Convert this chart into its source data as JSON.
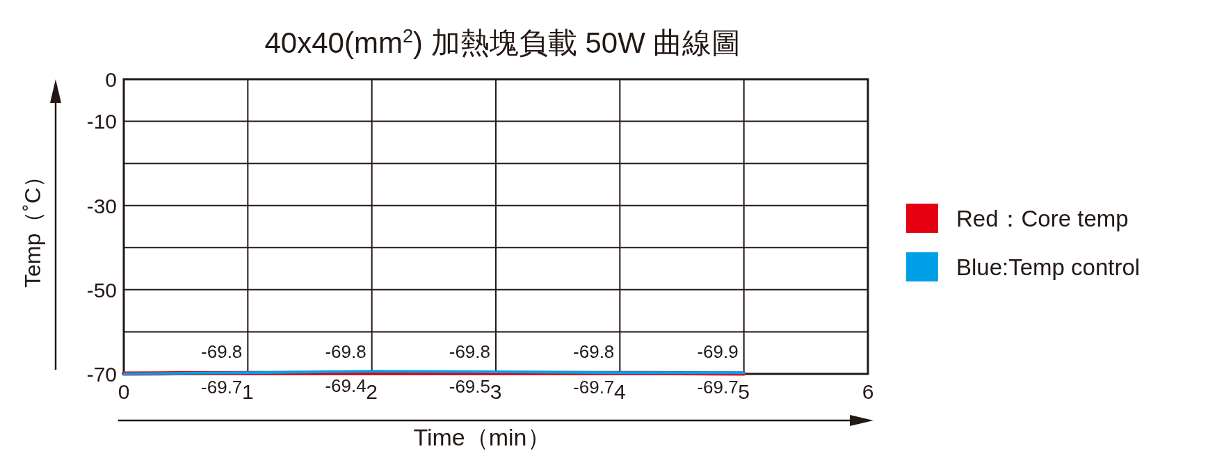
{
  "chart_data": {
    "type": "line",
    "title": "40x40(mm$^{2}$) 加熱塊負載 50W 曲線圖",
    "xlabel": "Time（min）",
    "ylabel": "Temp（˚C）",
    "x": [
      0,
      1,
      2,
      3,
      4,
      5
    ],
    "series": [
      {
        "name": "Red：Core temp",
        "color": "#e60012",
        "values": [
          -69.9,
          -69.8,
          -69.8,
          -69.8,
          -69.8,
          -69.9
        ],
        "value_labels": [
          null,
          "-69.8",
          "-69.8",
          "-69.8",
          "-69.8",
          "-69.9"
        ]
      },
      {
        "name": "Blue:Temp control",
        "color": "#00a0e9",
        "values": [
          -70,
          -69.7,
          -69.4,
          -69.5,
          -69.7,
          -69.7
        ],
        "value_labels": [
          null,
          "-69.7",
          "-69.4",
          "-69.5",
          "-69.7",
          "-69.7"
        ]
      }
    ],
    "xlim": [
      0,
      6
    ],
    "xticks": [
      0,
      1,
      2,
      3,
      4,
      5,
      6
    ],
    "ylim": [
      -70,
      0
    ],
    "yticks": [
      0,
      -10,
      {
        "value": -20,
        "label": null
      },
      -30,
      {
        "value": -40,
        "label": null
      },
      -50,
      {
        "value": -60,
        "label": null
      },
      -70
    ],
    "grid": true,
    "legend": "right",
    "marker": "none",
    "line_style": "solid"
  }
}
